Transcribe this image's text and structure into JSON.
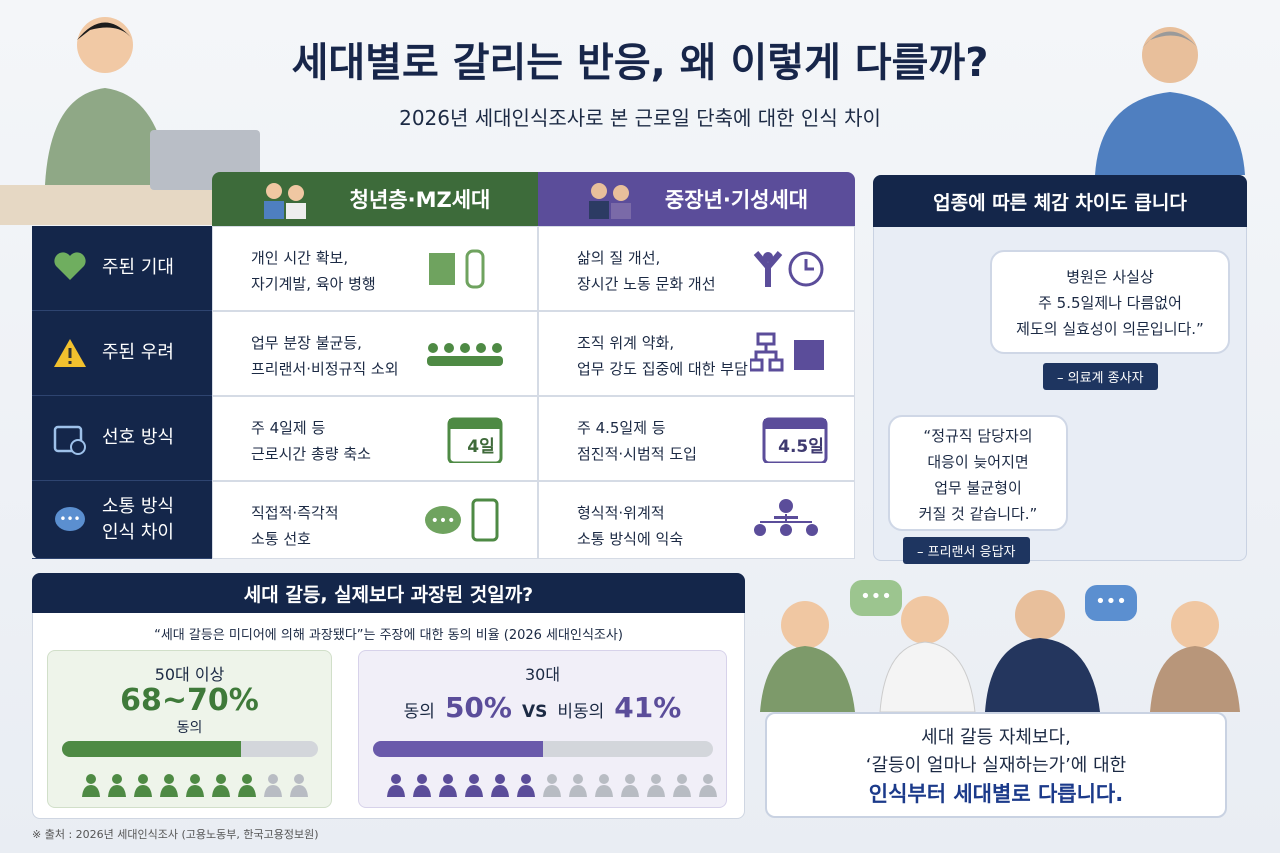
{
  "header": {
    "title": "세대별로 갈리는 반응, 왜 이렇게 다를까?",
    "subtitle": "2026년 세대인식조사로 본 근로일 단축에 대한 인식 차이"
  },
  "table": {
    "columns": [
      "청년층·MZ세대",
      "중장년·기성세대"
    ],
    "rows": [
      {
        "label": [
          "주된 기대"
        ],
        "young": [
          "개인 시간 확보,",
          "자기계발, 육아 병행"
        ],
        "old": [
          "삶의 질 개선,",
          "장시간 노동 문화 개선"
        ]
      },
      {
        "label": [
          "주된 우려"
        ],
        "young": [
          "업무 분장 불균등,",
          "프리랜서·비정규직 소외"
        ],
        "old": [
          "조직 위계 약화,",
          "업무 강도 집중에 대한 부담"
        ]
      },
      {
        "label": [
          "선호 방식"
        ],
        "young": [
          "주 4일제 등",
          "근로시간 총량 축소"
        ],
        "old": [
          "주 4.5일제 등",
          "점진적·시범적 도입"
        ],
        "young_badge": "4일",
        "old_badge": "4.5일"
      },
      {
        "label": [
          "소통 방식",
          "인식 차이"
        ],
        "young": [
          "직접적·즉각적",
          "소통 선호"
        ],
        "old": [
          "형식적·위계적",
          "소통 방식에 익숙"
        ]
      }
    ]
  },
  "industry": {
    "title": "업종에 따른 체감 차이도 큽니다",
    "quotes": [
      {
        "text": [
          "병원은 사실상",
          "주 5.5일제나 다름없어",
          "제도의 실효성이 의문입니다.”"
        ],
        "source": "– 의료계 종사자"
      },
      {
        "text": [
          "“정규직 담당자의",
          "대응이 늦어지면",
          "업무 불균형이",
          "커질 것 같습니다.”"
        ],
        "source": "– 프리랜서 응답자"
      }
    ]
  },
  "survey": {
    "title": "세대 갈등, 실제보다 과장된 것일까?",
    "note": "“세대 갈등은 미디어에 의해 과장됐다”는 주장에 대한 동의 비율 (2026 세대인식조사)",
    "groups": [
      {
        "name": "50대 이상",
        "value": "68~70%",
        "label": "동의",
        "bar": 70
      },
      {
        "name": "30대",
        "agree_label": "동의",
        "agree": "50%",
        "vs": "VS",
        "disagree_label": "비동의",
        "disagree": "41%",
        "bar": 50
      }
    ]
  },
  "conclusion": [
    "세대 갈등 자체보다,",
    "‘갈등이 얼마나 실재하는가’에 대한",
    "인식부터 세대별로 다릅니다."
  ],
  "source": "※ 출처 : 2026년 세대인식조사 (고용노동부, 한국고용정보원)"
}
